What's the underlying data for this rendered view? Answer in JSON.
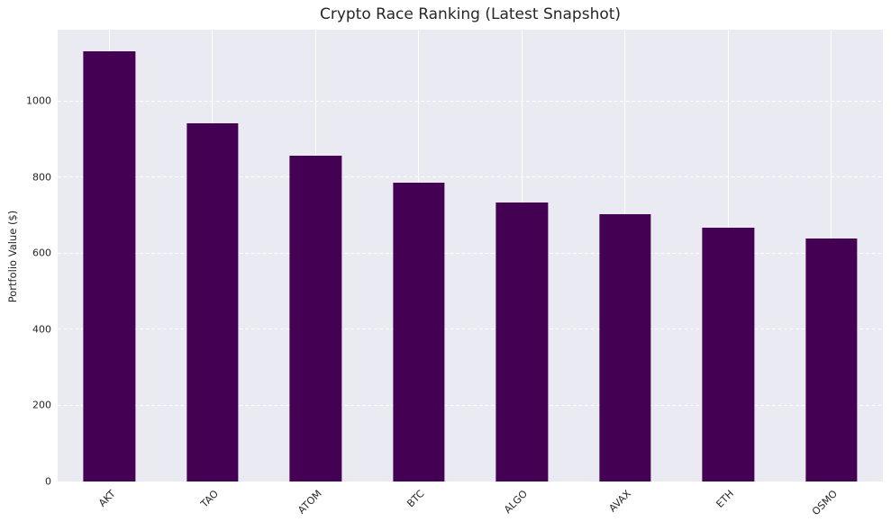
{
  "chart_data": {
    "type": "bar",
    "title": "Crypto Race Ranking (Latest Snapshot)",
    "xlabel": "",
    "ylabel": "Portfolio Value ($)",
    "categories": [
      "AKT",
      "TAO",
      "ATOM",
      "BTC",
      "ALGO",
      "AVAX",
      "ETH",
      "OSMO"
    ],
    "values": [
      1130,
      940,
      855,
      785,
      732,
      702,
      666,
      638
    ],
    "yticks": [
      0,
      200,
      400,
      600,
      800,
      1000
    ],
    "ylim": [
      0,
      1187
    ],
    "bar_width_fraction": 0.5,
    "x_tick_rotation_deg": 45,
    "grid": true,
    "legend": false,
    "colors": {
      "bar": "#440154",
      "plot_background": "#eaeaf2",
      "gridline": "#ffffff",
      "text": "#262626"
    }
  }
}
